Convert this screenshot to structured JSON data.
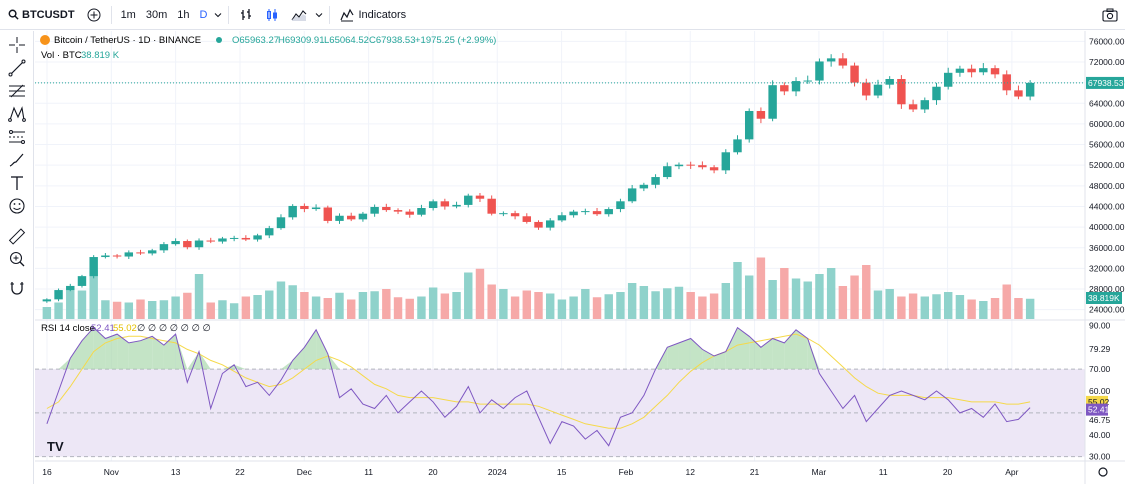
{
  "toolbar": {
    "symbol": "BTCUSDT",
    "timeframes": [
      "1m",
      "30m",
      "1h",
      "D"
    ],
    "active_timeframe": "D",
    "indicators_label": "Indicators"
  },
  "legend": {
    "title": "Bitcoin / TetherUS · 1D · BINANCE",
    "open": "O65963.27",
    "high": "H69309.91",
    "low": "L65064.52",
    "close": "C67938.53",
    "change": "+1975.25 (+2.99%)",
    "volume_label": "Vol · BTC",
    "volume_value": "38.819 K",
    "rsi_label": "RSI 14 close",
    "rsi_value": "52.41",
    "rsi_ma_value": "55.02",
    "rsi_extras": "∅ ∅ ∅ ∅ ∅ ∅ ∅"
  },
  "colors": {
    "up": "#26a69a",
    "down": "#ef5350",
    "up_volume": "#8fd2cb",
    "down_volume": "#f6a9a8",
    "rsi_line": "#7e57c2",
    "rsi_ma": "#f5d94a",
    "rsi_band": "#ede7f6",
    "accent": "#2962ff"
  },
  "chart_data": {
    "type": "candlestick",
    "price_axis_ticks": [
      "76000.00",
      "72000.00",
      "68000.00",
      "64000.00",
      "60000.00",
      "56000.00",
      "52000.00",
      "48000.00",
      "44000.00",
      "40000.00",
      "36000.00",
      "32000.00",
      "28000.00",
      "24000.00"
    ],
    "price_ylim": [
      22000,
      78000
    ],
    "last_price_label": "67938.53",
    "last_price": 67938.53,
    "volume_label": "38.819K",
    "rsi_axis_ticks": [
      "90.00",
      "79.29",
      "70.00",
      "60.00",
      "55.02",
      "52.41",
      "46.75",
      "40.00",
      "30.00"
    ],
    "rsi_ylim": [
      28,
      92
    ],
    "rsi_levels": [
      70,
      30
    ],
    "time_labels": [
      "16",
      "Nov",
      "13",
      "22",
      "Dec",
      "11",
      "20",
      "2024",
      "15",
      "Feb",
      "12",
      "21",
      "Mar",
      "11",
      "20",
      "Apr"
    ],
    "close_path": [
      26000,
      27800,
      28600,
      30500,
      34200,
      34500,
      34300,
      35100,
      34900,
      35500,
      36700,
      37300,
      36100,
      37400,
      37200,
      37800,
      37900,
      37600,
      38400,
      39800,
      41900,
      44100,
      43500,
      43800,
      41200,
      42200,
      41500,
      42600,
      43900,
      43300,
      43000,
      42400,
      43700,
      45000,
      44000,
      44300,
      46100,
      45500,
      42600,
      42700,
      42100,
      41000,
      39900,
      41300,
      42300,
      43000,
      43100,
      42500,
      43500,
      45000,
      47500,
      48200,
      49700,
      51800,
      52100,
      52000,
      51600,
      51000,
      54500,
      57000,
      62500,
      61000,
      67500,
      66300,
      68300,
      68400,
      72100,
      72700,
      71300,
      68000,
      65500,
      67600,
      68700,
      63800,
      62800,
      64600,
      67200,
      69900,
      70700,
      70000,
      70800,
      69600,
      66500,
      65300,
      67938.53
    ],
    "volume_path": [
      0.16,
      0.22,
      0.42,
      0.38,
      0.65,
      0.25,
      0.23,
      0.22,
      0.26,
      0.24,
      0.25,
      0.3,
      0.35,
      0.6,
      0.22,
      0.25,
      0.21,
      0.3,
      0.32,
      0.38,
      0.5,
      0.45,
      0.36,
      0.3,
      0.28,
      0.35,
      0.26,
      0.36,
      0.37,
      0.4,
      0.29,
      0.27,
      0.3,
      0.42,
      0.34,
      0.36,
      0.62,
      0.67,
      0.46,
      0.4,
      0.3,
      0.38,
      0.36,
      0.34,
      0.26,
      0.3,
      0.4,
      0.29,
      0.33,
      0.36,
      0.48,
      0.44,
      0.37,
      0.41,
      0.43,
      0.36,
      0.3,
      0.34,
      0.48,
      0.76,
      0.58,
      0.82,
      0.52,
      0.68,
      0.54,
      0.5,
      0.6,
      0.68,
      0.44,
      0.58,
      0.72,
      0.38,
      0.4,
      0.3,
      0.34,
      0.3,
      0.33,
      0.36,
      0.32,
      0.26,
      0.24,
      0.28,
      0.46,
      0.28,
      0.27
    ],
    "rsi_path": [
      45,
      60,
      75,
      83,
      89,
      84,
      86,
      82,
      83,
      85,
      81,
      86,
      64,
      78,
      52,
      68,
      72,
      62,
      64,
      58,
      65,
      74,
      80,
      88,
      77,
      57,
      61,
      54,
      52,
      58,
      50,
      55,
      60,
      55,
      48,
      53,
      62,
      50,
      56,
      52,
      57,
      60,
      48,
      36,
      46,
      44,
      38,
      42,
      35,
      48,
      50,
      58,
      70,
      80,
      82,
      84,
      79,
      76,
      78,
      89,
      85,
      80,
      84,
      82,
      88,
      84,
      68,
      60,
      52,
      58,
      46,
      52,
      58,
      60,
      58,
      56,
      60,
      56,
      50,
      52,
      48,
      54,
      46,
      47,
      52.41
    ],
    "rsi_ma_path": [
      52,
      55,
      62,
      70,
      78,
      82,
      84,
      85,
      85,
      84,
      83,
      82,
      79,
      77,
      74,
      72,
      69,
      66,
      64,
      62,
      63,
      66,
      70,
      74,
      76,
      74,
      71,
      67,
      63,
      61,
      58,
      57,
      57,
      57,
      56,
      55,
      55,
      54,
      54,
      54,
      54,
      54,
      53,
      51,
      49,
      47,
      45,
      44,
      43,
      43,
      45,
      48,
      53,
      58,
      64,
      69,
      73,
      76,
      78,
      81,
      82,
      83,
      84,
      85,
      86,
      84,
      81,
      76,
      71,
      66,
      62,
      59,
      58,
      58,
      58,
      57,
      57,
      57,
      56,
      55,
      55,
      55,
      54,
      54,
      55.02
    ]
  }
}
